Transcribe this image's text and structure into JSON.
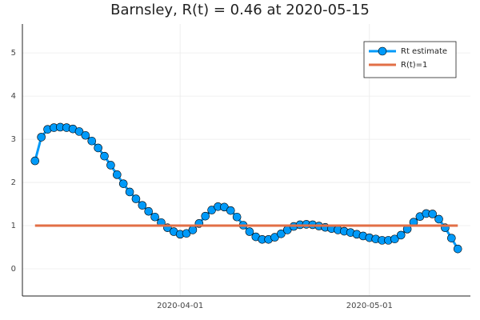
{
  "chart_data": {
    "type": "line",
    "title": "Barnsley, R(t) = 0.46 at 2020-05-15",
    "x": [
      "2020-03-09",
      "2020-03-10",
      "2020-03-11",
      "2020-03-12",
      "2020-03-13",
      "2020-03-14",
      "2020-03-15",
      "2020-03-16",
      "2020-03-17",
      "2020-03-18",
      "2020-03-19",
      "2020-03-20",
      "2020-03-21",
      "2020-03-22",
      "2020-03-23",
      "2020-03-24",
      "2020-03-25",
      "2020-03-26",
      "2020-03-27",
      "2020-03-28",
      "2020-03-29",
      "2020-03-30",
      "2020-03-31",
      "2020-04-01",
      "2020-04-02",
      "2020-04-03",
      "2020-04-04",
      "2020-04-05",
      "2020-04-06",
      "2020-04-07",
      "2020-04-08",
      "2020-04-09",
      "2020-04-10",
      "2020-04-11",
      "2020-04-12",
      "2020-04-13",
      "2020-04-14",
      "2020-04-15",
      "2020-04-16",
      "2020-04-17",
      "2020-04-18",
      "2020-04-19",
      "2020-04-20",
      "2020-04-21",
      "2020-04-22",
      "2020-04-23",
      "2020-04-24",
      "2020-04-25",
      "2020-04-26",
      "2020-04-27",
      "2020-04-28",
      "2020-04-29",
      "2020-04-30",
      "2020-05-01",
      "2020-05-02",
      "2020-05-03",
      "2020-05-04",
      "2020-05-05",
      "2020-05-06",
      "2020-05-07",
      "2020-05-08",
      "2020-05-09",
      "2020-05-10",
      "2020-05-11",
      "2020-05-12",
      "2020-05-13",
      "2020-05-14",
      "2020-05-15"
    ],
    "series": [
      {
        "name": "Rt estimate",
        "color": "#009af9",
        "markers": true,
        "values": [
          2.5,
          3.05,
          3.23,
          3.27,
          3.28,
          3.27,
          3.24,
          3.18,
          3.09,
          2.96,
          2.8,
          2.61,
          2.4,
          2.18,
          1.97,
          1.78,
          1.62,
          1.47,
          1.33,
          1.2,
          1.07,
          0.95,
          0.86,
          0.8,
          0.82,
          0.9,
          1.05,
          1.22,
          1.36,
          1.44,
          1.43,
          1.35,
          1.2,
          1.01,
          0.86,
          0.74,
          0.68,
          0.68,
          0.73,
          0.81,
          0.9,
          0.98,
          1.02,
          1.03,
          1.02,
          0.99,
          0.96,
          0.93,
          0.9,
          0.87,
          0.84,
          0.8,
          0.76,
          0.72,
          0.69,
          0.66,
          0.66,
          0.69,
          0.78,
          0.92,
          1.08,
          1.21,
          1.28,
          1.27,
          1.15,
          0.95,
          0.71,
          0.46
        ]
      },
      {
        "name": "R(t)=1",
        "color": "#e26f46",
        "markers": false,
        "values": [
          1,
          1,
          1,
          1,
          1,
          1,
          1,
          1,
          1,
          1,
          1,
          1,
          1,
          1,
          1,
          1,
          1,
          1,
          1,
          1,
          1,
          1,
          1,
          1,
          1,
          1,
          1,
          1,
          1,
          1,
          1,
          1,
          1,
          1,
          1,
          1,
          1,
          1,
          1,
          1,
          1,
          1,
          1,
          1,
          1,
          1,
          1,
          1,
          1,
          1,
          1,
          1,
          1,
          1,
          1,
          1,
          1,
          1,
          1,
          1,
          1,
          1,
          1,
          1,
          1,
          1,
          1,
          1
        ]
      }
    ],
    "xlim": [
      "2020-03-07",
      "2020-05-17"
    ],
    "xticks": [
      "2020-04-01",
      "2020-05-01"
    ],
    "ylim": [
      -0.63,
      5.67
    ],
    "yticks": [
      0,
      1,
      2,
      3,
      4,
      5
    ],
    "grid": true,
    "legend": "top-right"
  }
}
